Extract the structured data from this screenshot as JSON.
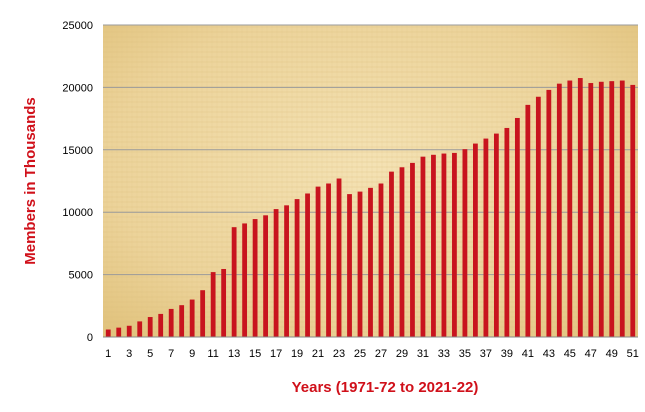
{
  "chart_data": {
    "type": "bar",
    "title": "",
    "xlabel": "Years (1971-72 to 2021-22)",
    "ylabel": "Members in Thousands",
    "ylim": [
      0,
      25000
    ],
    "yticks": [
      0,
      5000,
      10000,
      15000,
      20000,
      25000
    ],
    "xtick_labels": [
      "1",
      "3",
      "5",
      "7",
      "9",
      "11",
      "13",
      "15",
      "17",
      "19",
      "21",
      "23",
      "25",
      "27",
      "29",
      "31",
      "33",
      "35",
      "37",
      "39",
      "41",
      "43",
      "45",
      "47",
      "49",
      "51"
    ],
    "categories": [
      "1",
      "2",
      "3",
      "4",
      "5",
      "6",
      "7",
      "8",
      "9",
      "10",
      "11",
      "12",
      "13",
      "14",
      "15",
      "16",
      "17",
      "18",
      "19",
      "20",
      "21",
      "22",
      "23",
      "24",
      "25",
      "26",
      "27",
      "28",
      "29",
      "30",
      "31",
      "32",
      "33",
      "34",
      "35",
      "36",
      "37",
      "38",
      "39",
      "40",
      "41",
      "42",
      "43",
      "44",
      "45",
      "46",
      "47",
      "48",
      "49",
      "50",
      "51"
    ],
    "values": [
      600,
      750,
      900,
      1250,
      1600,
      1850,
      2250,
      2550,
      3000,
      3750,
      5200,
      5450,
      8800,
      9100,
      9450,
      9750,
      10250,
      10550,
      11050,
      11500,
      12050,
      12300,
      12700,
      11450,
      11650,
      11950,
      12300,
      13250,
      13600,
      13950,
      14450,
      14600,
      14700,
      14750,
      15050,
      15500,
      15900,
      16300,
      16750,
      17550,
      18600,
      19250,
      19800,
      20300,
      20550,
      20750,
      20350,
      20450,
      20500,
      20550,
      20200
    ],
    "bar_color": "#c8141e",
    "plot_background": "#f0d9a0",
    "grid": true
  }
}
